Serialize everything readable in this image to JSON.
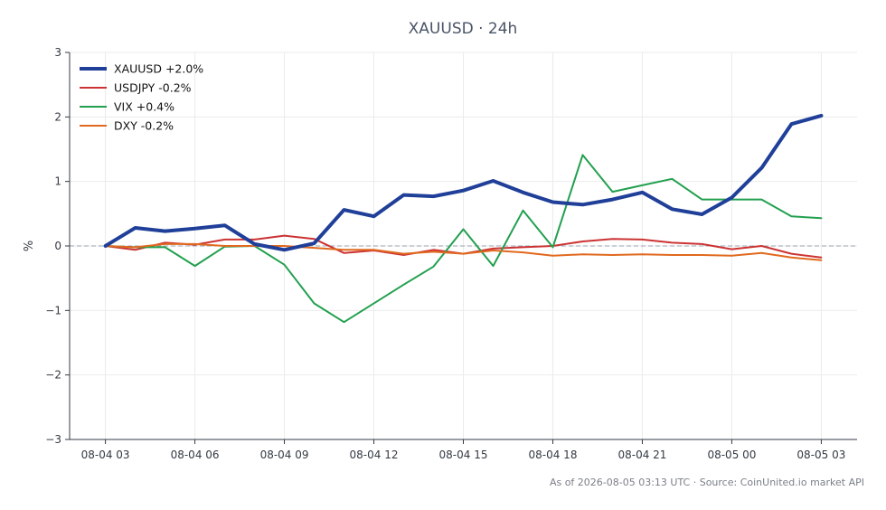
{
  "chart_data": {
    "type": "line",
    "title": "XAUUSD · 24h",
    "xlabel": "",
    "ylabel": "%",
    "ylim": [
      -3,
      3
    ],
    "yticks": [
      -3,
      -2,
      -1,
      0,
      1,
      2,
      3
    ],
    "ytick_labels": [
      "−3",
      "−2",
      "−1",
      "0",
      "1",
      "2",
      "3"
    ],
    "xticks": [
      {
        "x": 0,
        "label": "08-04 03"
      },
      {
        "x": 3,
        "label": "08-04 06"
      },
      {
        "x": 6,
        "label": "08-04 09"
      },
      {
        "x": 9,
        "label": "08-04 12"
      },
      {
        "x": 12,
        "label": "08-04 15"
      },
      {
        "x": 15,
        "label": "08-04 18"
      },
      {
        "x": 18,
        "label": "08-04 21"
      },
      {
        "x": 21,
        "label": "08-05 00"
      },
      {
        "x": 24,
        "label": "08-05 03"
      }
    ],
    "xlim": [
      -1.2,
      25.2
    ],
    "grid": true,
    "zero_line": true,
    "legend_position": "top-left",
    "series": [
      {
        "name": "XAUUSD +2.0%",
        "color": "#1f3f99",
        "width": 4,
        "x": [
          0,
          1,
          2,
          3,
          4,
          5,
          6,
          7,
          8,
          9,
          10,
          11,
          12,
          13,
          14,
          15,
          16,
          17,
          18,
          19,
          20,
          21,
          22,
          23,
          24
        ],
        "values": [
          0.0,
          0.28,
          0.23,
          0.27,
          0.32,
          0.03,
          -0.06,
          0.04,
          0.56,
          0.46,
          0.79,
          0.77,
          0.86,
          1.01,
          0.83,
          0.68,
          0.64,
          0.72,
          0.83,
          0.57,
          0.49,
          0.75,
          1.21,
          1.89,
          2.02
        ]
      },
      {
        "name": "USDJPY -0.2%",
        "color": "#cc3333",
        "width": 2,
        "x": [
          0,
          1,
          2,
          3,
          4,
          5,
          6,
          7,
          8,
          9,
          10,
          11,
          12,
          13,
          14,
          15,
          16,
          17,
          18,
          19,
          20,
          21,
          22,
          23,
          24
        ],
        "values": [
          0.0,
          -0.06,
          0.05,
          0.02,
          0.1,
          0.1,
          0.16,
          0.11,
          -0.11,
          -0.07,
          -0.14,
          -0.06,
          -0.12,
          -0.04,
          -0.02,
          0.0,
          0.07,
          0.11,
          0.1,
          0.05,
          0.03,
          -0.05,
          0.0,
          -0.12,
          -0.18
        ]
      },
      {
        "name": "VIX +0.4%",
        "color": "#22a04f",
        "width": 2,
        "x": [
          0,
          1,
          2,
          3,
          4,
          5,
          6,
          7,
          8,
          10,
          11,
          12,
          13,
          14,
          15,
          16,
          17,
          18,
          19,
          20,
          21,
          22,
          23,
          24
        ],
        "values": [
          0.0,
          -0.02,
          -0.02,
          -0.31,
          -0.01,
          0.0,
          -0.29,
          -0.89,
          -1.18,
          -0.6,
          -0.32,
          0.26,
          -0.31,
          0.55,
          -0.02,
          1.41,
          0.84,
          0.94,
          1.04,
          0.72,
          0.72,
          0.72,
          0.46,
          0.43
        ]
      },
      {
        "name": "DXY -0.2%",
        "color": "#e0691f",
        "width": 2,
        "x": [
          0,
          1,
          2,
          3,
          4,
          5,
          6,
          7,
          8,
          9,
          10,
          11,
          12,
          13,
          14,
          15,
          16,
          17,
          18,
          19,
          20,
          21,
          22,
          23,
          24
        ],
        "values": [
          0.0,
          -0.02,
          0.03,
          0.03,
          0.0,
          0.0,
          0.0,
          -0.03,
          -0.06,
          -0.06,
          -0.12,
          -0.09,
          -0.12,
          -0.07,
          -0.1,
          -0.15,
          -0.13,
          -0.14,
          -0.13,
          -0.14,
          -0.14,
          -0.15,
          -0.11,
          -0.18,
          -0.22
        ]
      }
    ]
  },
  "footer": {
    "source_text": "As of 2026-08-05 03:13 UTC · Source: CoinUnited.io market API"
  }
}
